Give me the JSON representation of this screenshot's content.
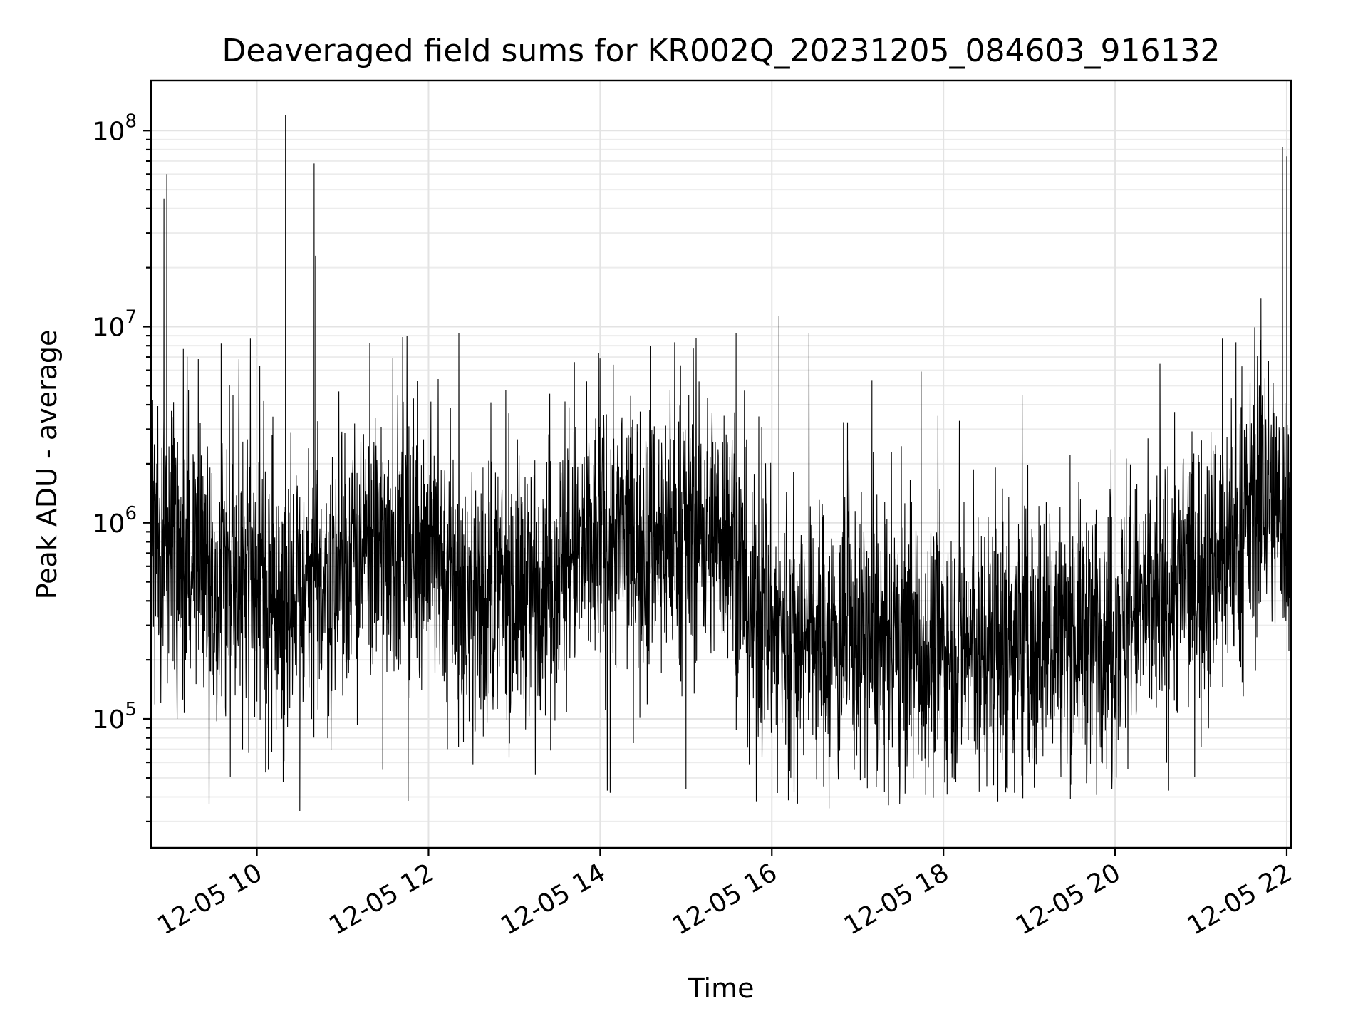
{
  "chart_data": {
    "type": "line",
    "title": "Deaveraged field sums for KR002Q_20231205_084603_916132",
    "xlabel": "Time",
    "ylabel": "Peak ADU - average",
    "yscale": "log",
    "grid": true,
    "xlim": [
      "2023-12-05 08:46",
      "2023-12-05 22:03"
    ],
    "ylim": [
      22000,
      180000000
    ],
    "x_ticks": [
      {
        "value": "2023-12-05 10:00",
        "label": "12-05 10"
      },
      {
        "value": "2023-12-05 12:00",
        "label": "12-05 12"
      },
      {
        "value": "2023-12-05 14:00",
        "label": "12-05 14"
      },
      {
        "value": "2023-12-05 16:00",
        "label": "12-05 16"
      },
      {
        "value": "2023-12-05 18:00",
        "label": "12-05 18"
      },
      {
        "value": "2023-12-05 20:00",
        "label": "12-05 20"
      },
      {
        "value": "2023-12-05 22:00",
        "label": "12-05 22"
      }
    ],
    "y_ticks": [
      {
        "value": 100000,
        "base": "10",
        "exp": "5"
      },
      {
        "value": 1000000,
        "base": "10",
        "exp": "6"
      },
      {
        "value": 10000000,
        "base": "10",
        "exp": "7"
      },
      {
        "value": 100000000,
        "base": "10",
        "exp": "8"
      }
    ],
    "color": "#000000",
    "trend": [
      {
        "t": "2023-12-05 08:46",
        "y": 750000
      },
      {
        "t": "2023-12-05 09:00",
        "y": 850000
      },
      {
        "t": "2023-12-05 09:30",
        "y": 600000
      },
      {
        "t": "2023-12-05 10:00",
        "y": 520000
      },
      {
        "t": "2023-12-05 10:30",
        "y": 420000
      },
      {
        "t": "2023-12-05 11:00",
        "y": 600000
      },
      {
        "t": "2023-12-05 11:30",
        "y": 800000
      },
      {
        "t": "2023-12-05 12:00",
        "y": 750000
      },
      {
        "t": "2023-12-05 12:30",
        "y": 400000
      },
      {
        "t": "2023-12-05 13:00",
        "y": 450000
      },
      {
        "t": "2023-12-05 13:30",
        "y": 600000
      },
      {
        "t": "2023-12-05 14:00",
        "y": 800000
      },
      {
        "t": "2023-12-05 14:30",
        "y": 850000
      },
      {
        "t": "2023-12-05 15:00",
        "y": 900000
      },
      {
        "t": "2023-12-05 15:30",
        "y": 950000
      },
      {
        "t": "2023-12-05 15:45",
        "y": 350000
      },
      {
        "t": "2023-12-05 16:00",
        "y": 300000
      },
      {
        "t": "2023-12-05 17:00",
        "y": 250000
      },
      {
        "t": "2023-12-05 18:00",
        "y": 220000
      },
      {
        "t": "2023-12-05 19:00",
        "y": 250000
      },
      {
        "t": "2023-12-05 20:00",
        "y": 300000
      },
      {
        "t": "2023-12-05 20:30",
        "y": 400000
      },
      {
        "t": "2023-12-05 21:00",
        "y": 600000
      },
      {
        "t": "2023-12-05 21:30",
        "y": 900000
      },
      {
        "t": "2023-12-05 21:45",
        "y": 1500000
      },
      {
        "t": "2023-12-05 22:03",
        "y": 1000000
      }
    ],
    "spikes": [
      {
        "t": "2023-12-05 08:55",
        "y": 45000000
      },
      {
        "t": "2023-12-05 08:57",
        "y": 60000000
      },
      {
        "t": "2023-12-05 10:20",
        "y": 120000000
      },
      {
        "t": "2023-12-05 10:40",
        "y": 68000000
      },
      {
        "t": "2023-12-05 10:41",
        "y": 23000000
      },
      {
        "t": "2023-12-05 09:35",
        "y": 8200000
      },
      {
        "t": "2023-12-05 10:02",
        "y": 6300000
      },
      {
        "t": "2023-12-05 11:35",
        "y": 6900000
      },
      {
        "t": "2023-12-05 13:42",
        "y": 6600000
      },
      {
        "t": "2023-12-05 14:35",
        "y": 8000000
      },
      {
        "t": "2023-12-05 15:35",
        "y": 9300000
      },
      {
        "t": "2023-12-05 16:05",
        "y": 11300000
      },
      {
        "t": "2023-12-05 17:10",
        "y": 5300000
      },
      {
        "t": "2023-12-05 18:55",
        "y": 4500000
      },
      {
        "t": "2023-12-05 21:15",
        "y": 8700000
      },
      {
        "t": "2023-12-05 21:42",
        "y": 14000000
      },
      {
        "t": "2023-12-05 21:57",
        "y": 82000000
      },
      {
        "t": "2023-12-05 22:00",
        "y": 74000000
      }
    ],
    "dips": [
      {
        "t": "2023-12-05 09:50",
        "y": 70000
      },
      {
        "t": "2023-12-05 10:08",
        "y": 55000
      },
      {
        "t": "2023-12-05 10:30",
        "y": 34000
      },
      {
        "t": "2023-12-05 11:28",
        "y": 55000
      },
      {
        "t": "2023-12-05 14:07",
        "y": 42000
      },
      {
        "t": "2023-12-05 15:00",
        "y": 44000
      },
      {
        "t": "2023-12-05 16:18",
        "y": 37000
      },
      {
        "t": "2023-12-05 16:40",
        "y": 35000
      },
      {
        "t": "2023-12-05 18:38",
        "y": 38000
      },
      {
        "t": "2023-12-05 19:40",
        "y": 47000
      }
    ]
  }
}
